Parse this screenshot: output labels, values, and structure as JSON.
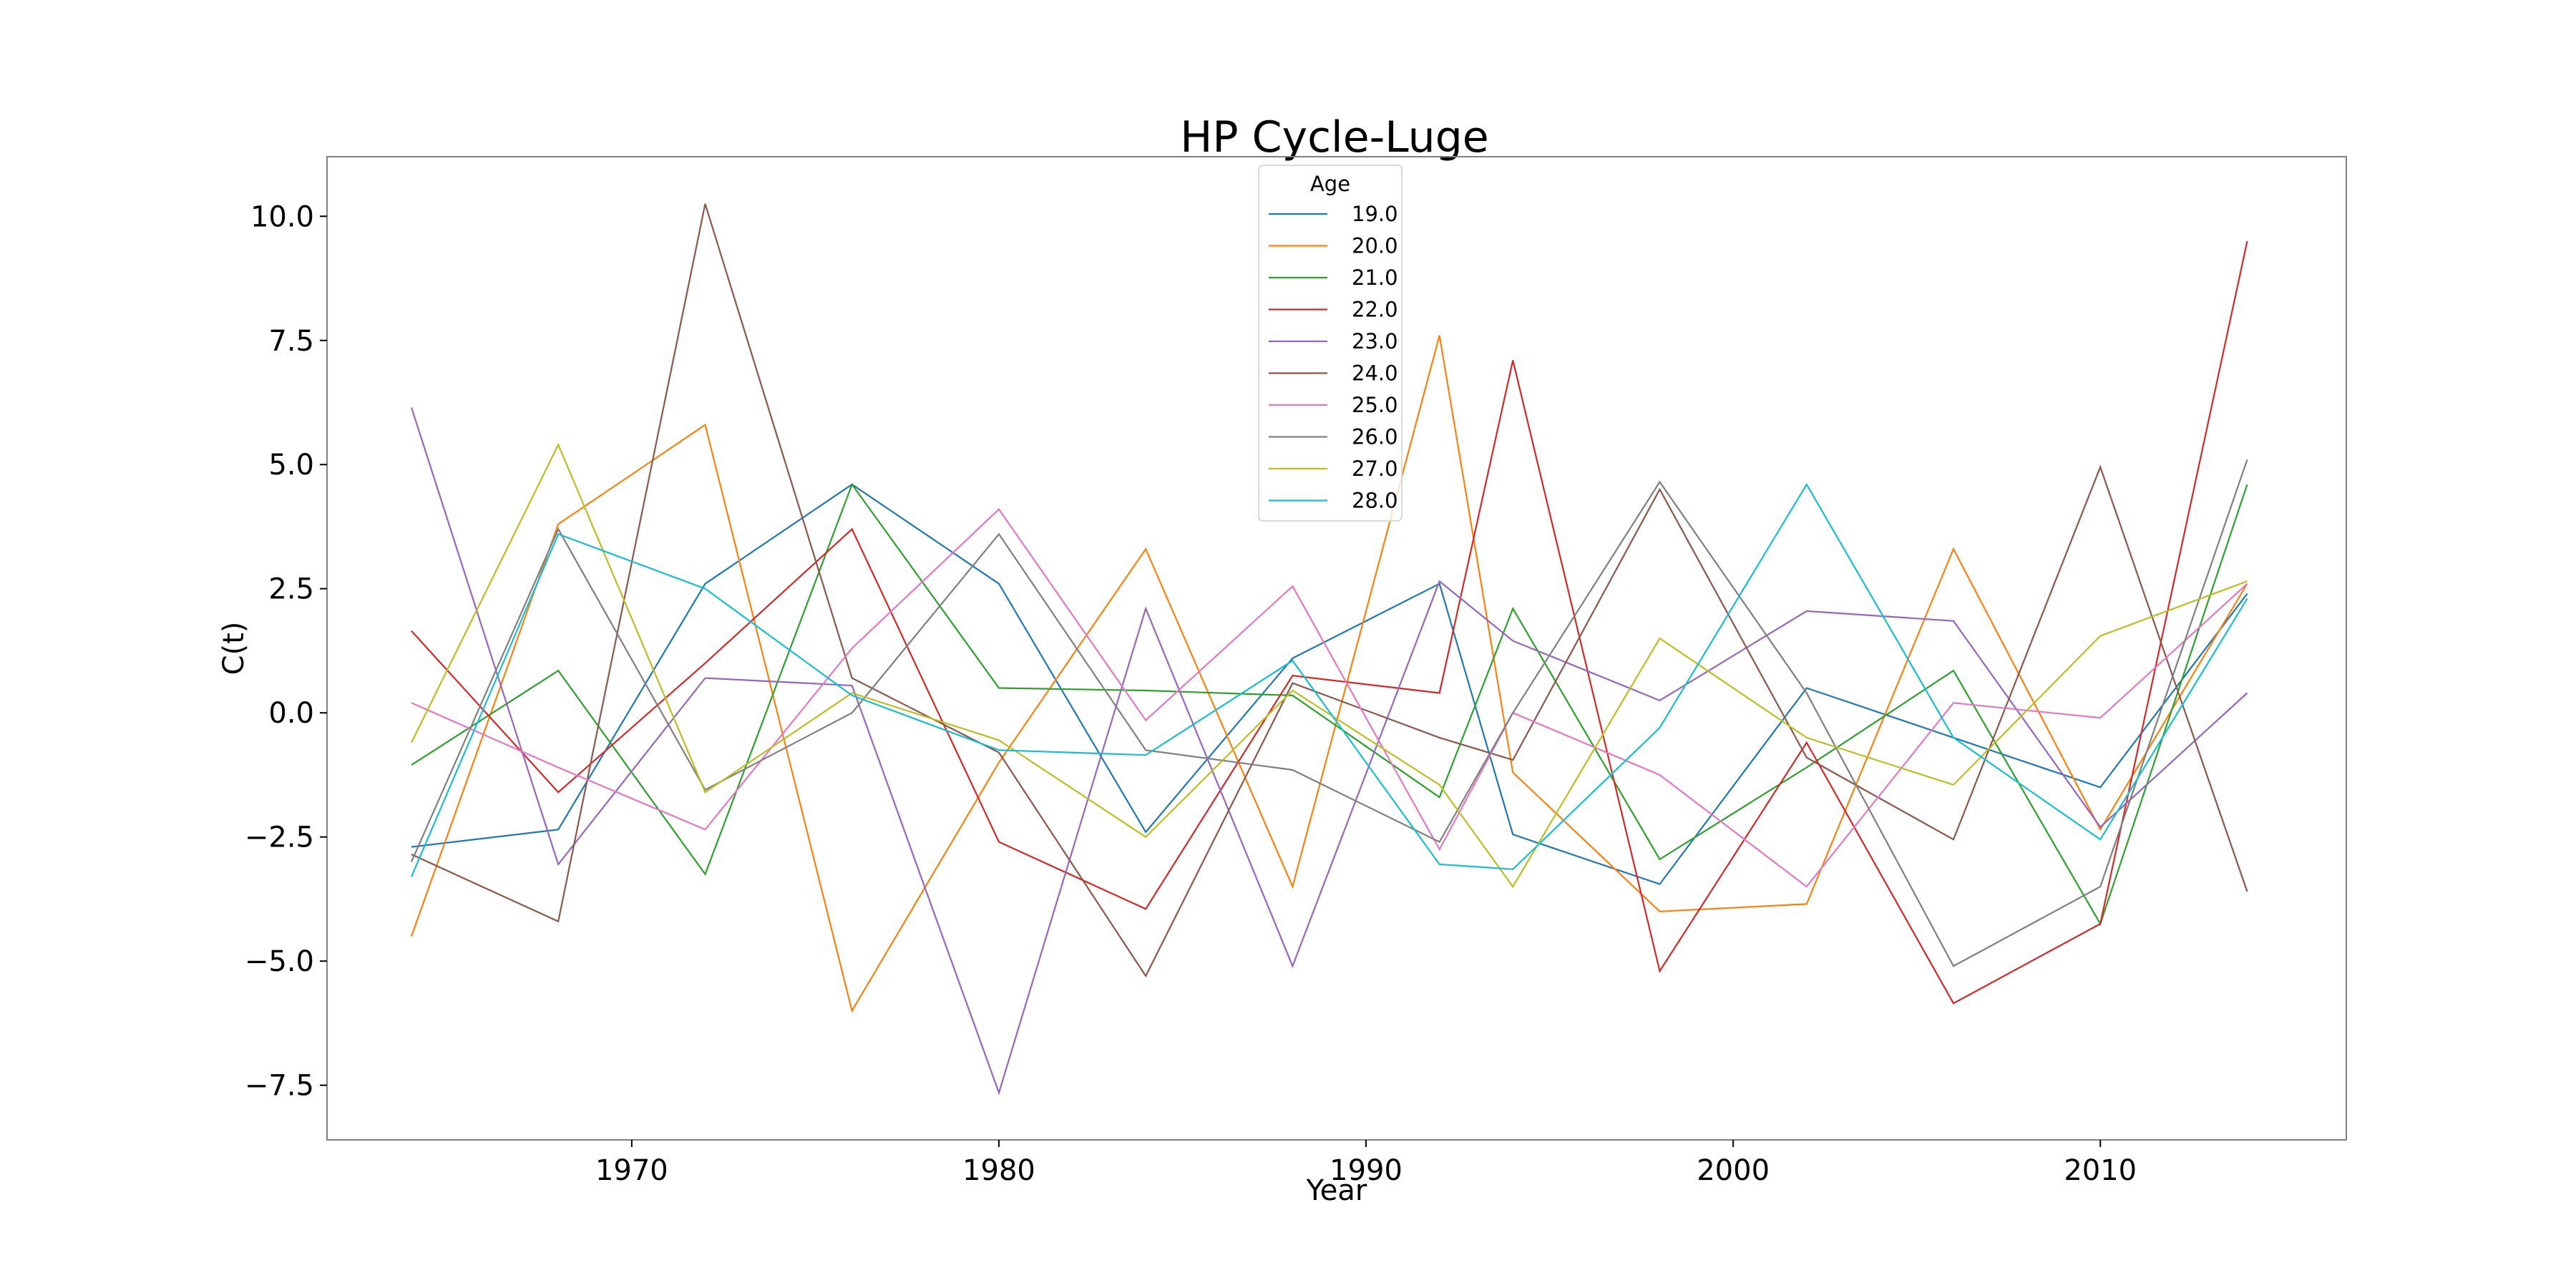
{
  "chart_data": {
    "type": "line",
    "title": "HP Cycle-Luge",
    "xlabel": "Year",
    "ylabel": "C(t)",
    "xlim": [
      1961.7,
      2016.7
    ],
    "ylim": [
      -8.6,
      11.2
    ],
    "xticks": [
      1970,
      1980,
      1990,
      2000,
      2010
    ],
    "yticks": [
      -7.5,
      -5.0,
      -2.5,
      0.0,
      2.5,
      5.0,
      7.5,
      10.0
    ],
    "grid": false,
    "legend": {
      "title": "Age",
      "position": "top-center"
    },
    "x": [
      1964,
      1968,
      1972,
      1976,
      1980,
      1984,
      1988,
      1992,
      1994,
      1998,
      2002,
      2006,
      2010,
      2014
    ],
    "series": [
      {
        "name": "19.0",
        "color": "#1f77b4",
        "values": [
          -2.7,
          -2.35,
          2.6,
          4.6,
          2.6,
          -2.4,
          1.1,
          2.6,
          -2.45,
          -3.45,
          0.5,
          -0.5,
          -1.5,
          2.4
        ]
      },
      {
        "name": "20.0",
        "color": "#ff7f0e",
        "values": [
          -4.5,
          3.8,
          5.8,
          -6.0,
          -1.0,
          3.3,
          -3.5,
          7.6,
          -1.2,
          -4.0,
          -3.85,
          3.3,
          -2.35,
          2.6
        ]
      },
      {
        "name": "21.0",
        "color": "#2ca02c",
        "values": [
          -1.05,
          0.85,
          -3.25,
          4.6,
          0.5,
          0.45,
          0.35,
          -1.7,
          2.1,
          -2.95,
          -1.1,
          0.85,
          -4.25,
          4.6
        ]
      },
      {
        "name": "22.0",
        "color": "#d62728",
        "values": [
          1.65,
          -1.6,
          1.0,
          3.7,
          -2.6,
          -3.95,
          0.75,
          0.4,
          7.1,
          -5.2,
          -0.6,
          -5.85,
          -4.25,
          9.5
        ]
      },
      {
        "name": "23.0",
        "color": "#9467bd",
        "values": [
          6.15,
          -3.05,
          0.7,
          0.55,
          -7.65,
          2.1,
          -5.1,
          2.65,
          1.45,
          0.25,
          2.05,
          1.85,
          -2.3,
          0.4
        ]
      },
      {
        "name": "24.0",
        "color": "#8c564b",
        "values": [
          -2.85,
          -4.2,
          10.25,
          0.7,
          -0.8,
          -5.3,
          0.6,
          -0.5,
          -0.95,
          4.5,
          -0.9,
          -2.55,
          4.95,
          -3.6
        ]
      },
      {
        "name": "25.0",
        "color": "#e377c2",
        "values": [
          0.2,
          -1.1,
          -2.35,
          1.3,
          4.1,
          -0.15,
          2.55,
          -2.75,
          0.0,
          -1.25,
          -3.5,
          0.2,
          -0.1,
          2.6
        ]
      },
      {
        "name": "26.0",
        "color": "#7f7f7f",
        "values": [
          -3.0,
          3.7,
          -1.55,
          0.0,
          3.6,
          -0.75,
          -1.15,
          -2.6,
          0.0,
          4.65,
          0.4,
          -5.1,
          -3.5,
          5.1
        ]
      },
      {
        "name": "27.0",
        "color": "#bcbd22",
        "values": [
          -0.6,
          5.4,
          -1.6,
          0.4,
          -0.55,
          -2.5,
          0.45,
          -1.45,
          -3.5,
          1.5,
          -0.5,
          -1.45,
          1.55,
          2.65
        ]
      },
      {
        "name": "28.0",
        "color": "#17becf",
        "values": [
          -3.3,
          3.6,
          2.5,
          0.35,
          -0.75,
          -0.85,
          1.05,
          -3.05,
          -3.15,
          -0.3,
          4.6,
          -0.5,
          -2.55,
          2.3
        ]
      }
    ]
  }
}
